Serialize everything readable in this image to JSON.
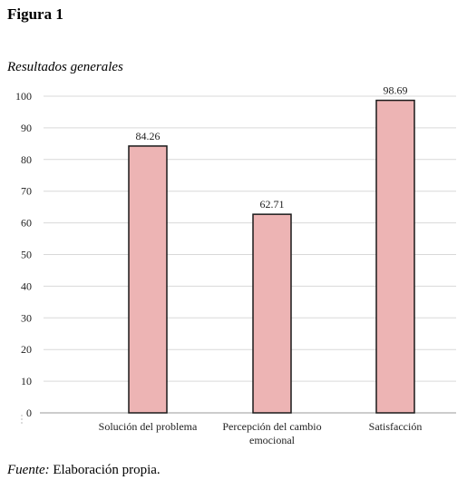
{
  "figure": {
    "label": "Figura 1",
    "title": "Resultados generales"
  },
  "source": {
    "prefix": "Fuente:",
    "text": " Elaboración propia."
  },
  "chart_data": {
    "type": "bar",
    "title": "",
    "xlabel": "",
    "ylabel": "",
    "categories": [
      [
        "Solución del problema"
      ],
      [
        "Percepción del cambio",
        "emocional"
      ],
      [
        "Satisfacción"
      ]
    ],
    "values": [
      84.26,
      62.71,
      98.69
    ],
    "data_labels": [
      "84.26",
      "62.71",
      "98.69"
    ],
    "ylim": [
      0,
      100
    ],
    "yticks": [
      0,
      10,
      20,
      30,
      40,
      50,
      60,
      70,
      80,
      90,
      100
    ],
    "grid": true,
    "legend": "none",
    "colors": {
      "bar_fill": "#EDB4B4",
      "bar_stroke": "#1a1a1a",
      "grid": "#d9d9d9",
      "axis": "#9a9a9a"
    }
  }
}
